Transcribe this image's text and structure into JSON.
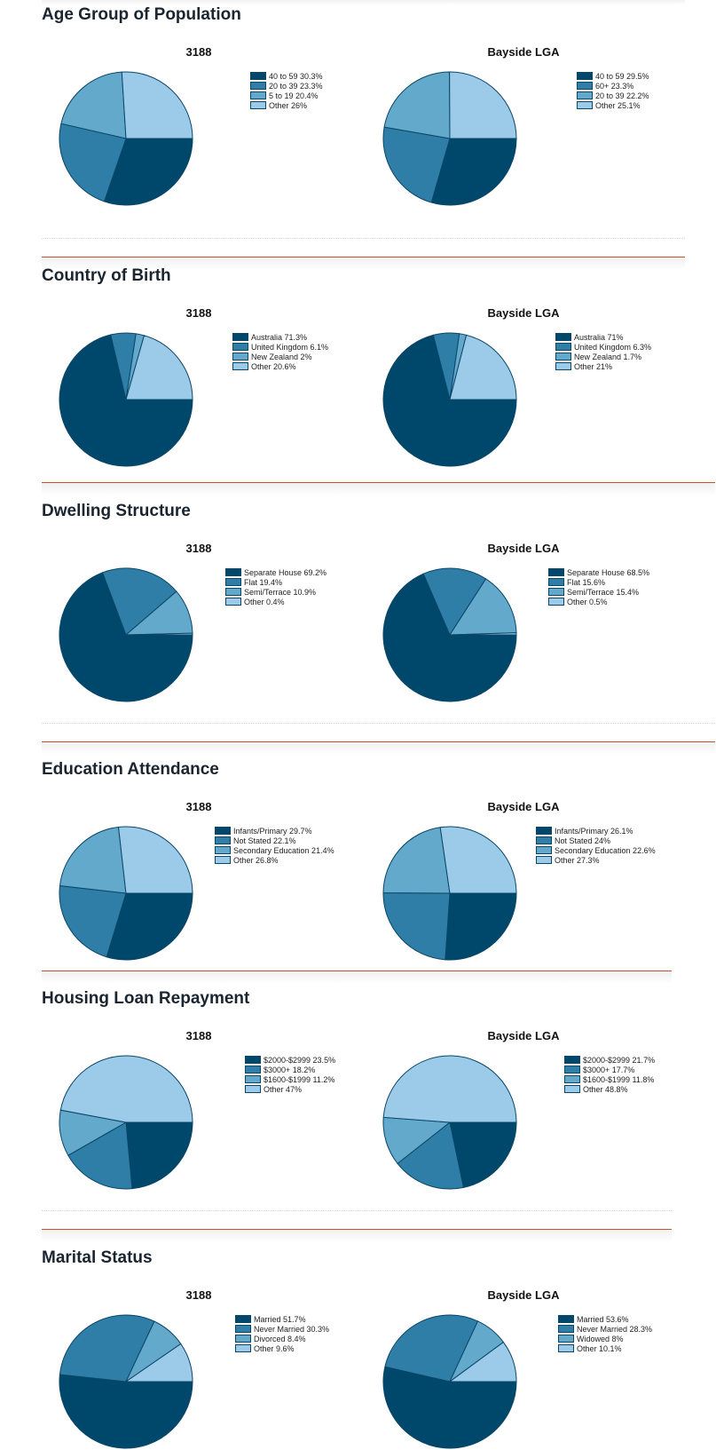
{
  "colors": [
    "#00486b",
    "#2e7ea8",
    "#63a9cc",
    "#9ccbea"
  ],
  "stroke_color": "#0b4666",
  "chart_data": [
    {
      "type": "pie",
      "title": "Age Group of Population",
      "charts": [
        {
          "title": "3188",
          "slices": [
            {
              "label": "40 to 59",
              "value": 30.3
            },
            {
              "label": "20 to 39",
              "value": 23.3
            },
            {
              "label": "5 to 19",
              "value": 20.4
            },
            {
              "label": "Other",
              "value": 26
            }
          ]
        },
        {
          "title": "Bayside LGA",
          "slices": [
            {
              "label": "40 to 59",
              "value": 29.5
            },
            {
              "label": "60+",
              "value": 23.3
            },
            {
              "label": "20 to 39",
              "value": 22.2
            },
            {
              "label": "Other",
              "value": 25.1
            }
          ]
        }
      ]
    },
    {
      "type": "pie",
      "title": "Country of Birth",
      "charts": [
        {
          "title": "3188",
          "slices": [
            {
              "label": "Australia",
              "value": 71.3
            },
            {
              "label": "United Kingdom",
              "value": 6.1
            },
            {
              "label": "New Zealand",
              "value": 2
            },
            {
              "label": "Other",
              "value": 20.6
            }
          ]
        },
        {
          "title": "Bayside LGA",
          "slices": [
            {
              "label": "Australia",
              "value": 71
            },
            {
              "label": "United Kingdom",
              "value": 6.3
            },
            {
              "label": "New Zealand",
              "value": 1.7
            },
            {
              "label": "Other",
              "value": 21
            }
          ]
        }
      ]
    },
    {
      "type": "pie",
      "title": "Dwelling Structure",
      "charts": [
        {
          "title": "3188",
          "slices": [
            {
              "label": "Separate House",
              "value": 69.2
            },
            {
              "label": "Flat",
              "value": 19.4
            },
            {
              "label": "Semi/Terrace",
              "value": 10.9
            },
            {
              "label": "Other",
              "value": 0.4
            }
          ]
        },
        {
          "title": "Bayside LGA",
          "slices": [
            {
              "label": "Separate House",
              "value": 68.5
            },
            {
              "label": "Flat",
              "value": 15.6
            },
            {
              "label": "Semi/Terrace",
              "value": 15.4
            },
            {
              "label": "Other",
              "value": 0.5
            }
          ]
        }
      ]
    },
    {
      "type": "pie",
      "title": "Education Attendance",
      "charts": [
        {
          "title": "3188",
          "slices": [
            {
              "label": "Infants/Primary",
              "value": 29.7
            },
            {
              "label": "Not Stated",
              "value": 22.1
            },
            {
              "label": "Secondary Education",
              "value": 21.4
            },
            {
              "label": "Other",
              "value": 26.8
            }
          ]
        },
        {
          "title": "Bayside LGA",
          "slices": [
            {
              "label": "Infants/Primary",
              "value": 26.1
            },
            {
              "label": "Not Stated",
              "value": 24
            },
            {
              "label": "Secondary Education",
              "value": 22.6
            },
            {
              "label": "Other",
              "value": 27.3
            }
          ]
        }
      ]
    },
    {
      "type": "pie",
      "title": "Housing Loan Repayment",
      "charts": [
        {
          "title": "3188",
          "slices": [
            {
              "label": "$2000-$2999",
              "value": 23.5
            },
            {
              "label": "$3000+",
              "value": 18.2
            },
            {
              "label": "$1600-$1999",
              "value": 11.2
            },
            {
              "label": "Other",
              "value": 47
            }
          ]
        },
        {
          "title": "Bayside LGA",
          "slices": [
            {
              "label": "$2000-$2999",
              "value": 21.7
            },
            {
              "label": "$3000+",
              "value": 17.7
            },
            {
              "label": "$1600-$1999",
              "value": 11.8
            },
            {
              "label": "Other",
              "value": 48.8
            }
          ]
        }
      ]
    },
    {
      "type": "pie",
      "title": "Marital Status",
      "charts": [
        {
          "title": "3188",
          "slices": [
            {
              "label": "Married",
              "value": 51.7
            },
            {
              "label": "Never Married",
              "value": 30.3
            },
            {
              "label": "Divorced",
              "value": 8.4
            },
            {
              "label": "Other",
              "value": 9.6
            }
          ]
        },
        {
          "title": "Bayside LGA",
          "slices": [
            {
              "label": "Married",
              "value": 53.6
            },
            {
              "label": "Never Married",
              "value": 28.3
            },
            {
              "label": "Widowed",
              "value": 8
            },
            {
              "label": "Other",
              "value": 10.1
            }
          ]
        }
      ]
    }
  ]
}
